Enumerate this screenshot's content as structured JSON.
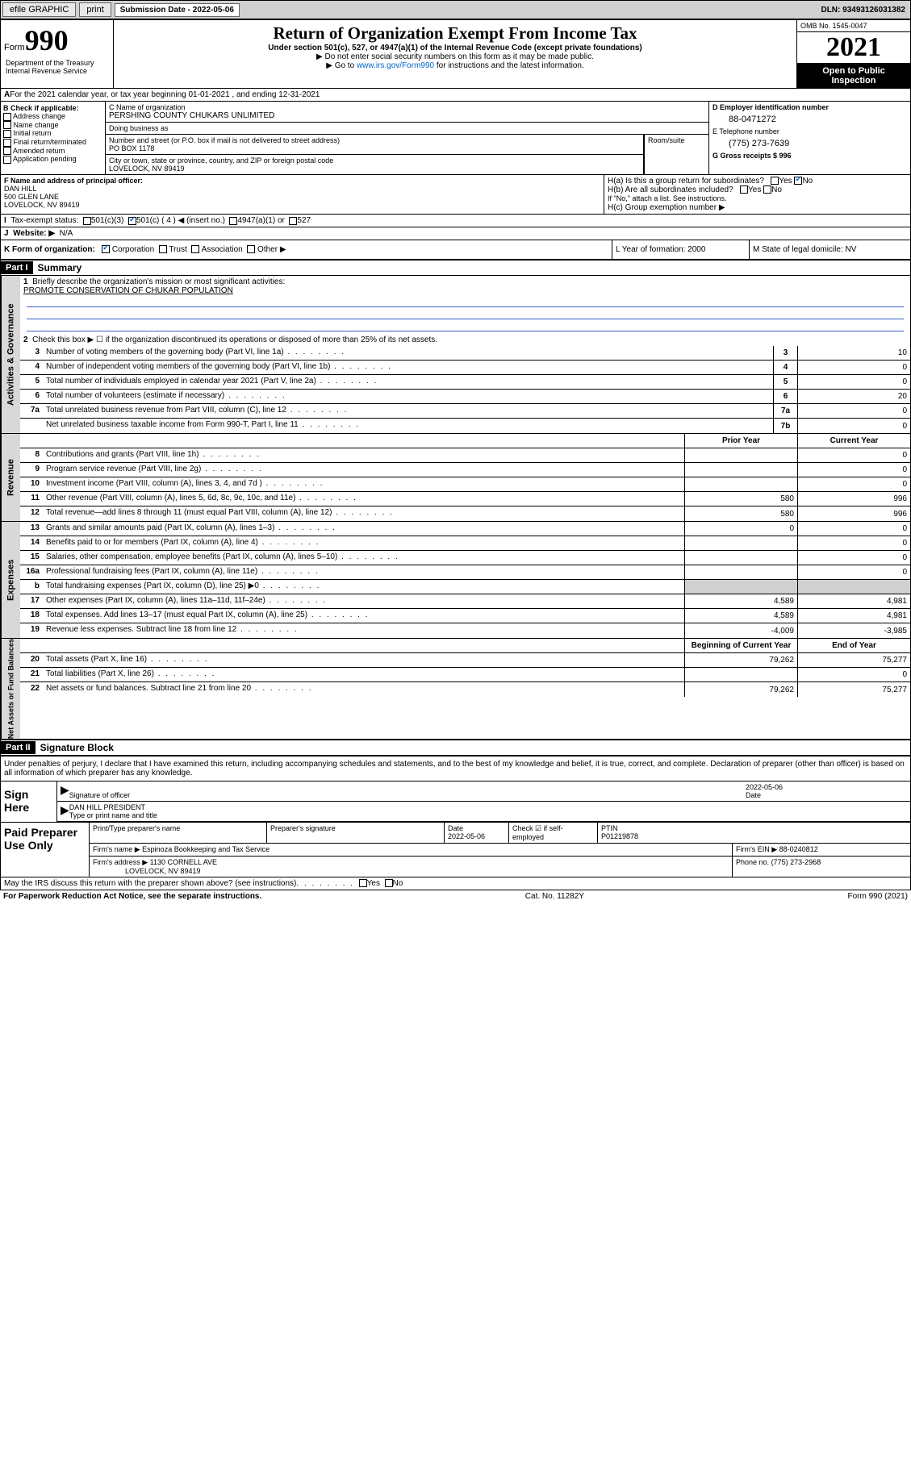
{
  "topbar": {
    "efile": "efile GRAPHIC",
    "print": "print",
    "subdate_label": "Submission Date - 2022-05-06",
    "dln": "DLN: 93493126031382"
  },
  "header": {
    "form_label": "Form",
    "form_num": "990",
    "dept": "Department of the Treasury\nInternal Revenue Service",
    "title": "Return of Organization Exempt From Income Tax",
    "subtitle": "Under section 501(c), 527, or 4947(a)(1) of the Internal Revenue Code (except private foundations)",
    "instr1": "▶ Do not enter social security numbers on this form as it may be made public.",
    "instr2_pre": "▶ Go to ",
    "instr2_link": "www.irs.gov/Form990",
    "instr2_post": " for instructions and the latest information.",
    "omb": "OMB No. 1545-0047",
    "year": "2021",
    "inspection": "Open to Public Inspection"
  },
  "section_a": "For the 2021 calendar year, or tax year beginning 01-01-2021    , and ending 12-31-2021",
  "section_b": {
    "label": "B Check if applicable:",
    "opts": [
      "Address change",
      "Name change",
      "Initial return",
      "Final return/terminated",
      "Amended return",
      "Application pending"
    ]
  },
  "section_c": {
    "name_label": "C Name of organization",
    "name": "PERSHING COUNTY CHUKARS UNLIMITED",
    "dba": "Doing business as",
    "addr_label": "Number and street (or P.O. box if mail is not delivered to street address)",
    "addr": "PO BOX 1178",
    "room": "Room/suite",
    "city_label": "City or town, state or province, country, and ZIP or foreign postal code",
    "city": "LOVELOCK, NV  89419"
  },
  "section_d": {
    "label": "D Employer identification number",
    "ein": "88-0471272",
    "e_label": "E Telephone number",
    "phone": "(775) 273-7639",
    "g_label": "G Gross receipts $ 996"
  },
  "officer": {
    "f_label": "F  Name and address of principal officer:",
    "name": "DAN HILL",
    "addr1": "500 GLEN LANE",
    "addr2": "LOVELOCK, NV  89419",
    "ha": "H(a)  Is this a group return for subordinates?",
    "hb": "H(b)  Are all subordinates included?",
    "hb_note": "If \"No,\" attach a list. See instructions.",
    "hc": "H(c)  Group exemption number ▶",
    "yes": "Yes",
    "no": "No"
  },
  "status": {
    "i": "Tax-exempt status:",
    "c3": "501(c)(3)",
    "c4": "501(c) ( 4 ) ◀ (insert no.)",
    "a1": "4947(a)(1) or",
    "s527": "527",
    "j": "Website: ▶",
    "jval": "N/A"
  },
  "kform": {
    "k": "K Form of organization:",
    "corp": "Corporation",
    "trust": "Trust",
    "assoc": "Association",
    "other": "Other ▶",
    "l": "L Year of formation: 2000",
    "m": "M State of legal domicile: NV"
  },
  "part1": {
    "label": "Part I",
    "title": "Summary",
    "line1": "Briefly describe the organization's mission or most significant activities:",
    "mission": "PROMOTE CONSERVATION OF CHUKAR POPULATION",
    "line2": "Check this box ▶ ☐  if the organization discontinued its operations or disposed of more than 25% of its net assets.",
    "sides": {
      "gov": "Activities & Governance",
      "rev": "Revenue",
      "exp": "Expenses",
      "net": "Net Assets or Fund Balances"
    },
    "cols": {
      "prior": "Prior Year",
      "current": "Current Year",
      "begin": "Beginning of Current Year",
      "end": "End of Year"
    },
    "rows": [
      {
        "n": "3",
        "t": "Number of voting members of the governing body (Part VI, line 1a)",
        "c": "3",
        "v": "10"
      },
      {
        "n": "4",
        "t": "Number of independent voting members of the governing body (Part VI, line 1b)",
        "c": "4",
        "v": "0"
      },
      {
        "n": "5",
        "t": "Total number of individuals employed in calendar year 2021 (Part V, line 2a)",
        "c": "5",
        "v": "0"
      },
      {
        "n": "6",
        "t": "Total number of volunteers (estimate if necessary)",
        "c": "6",
        "v": "20"
      },
      {
        "n": "7a",
        "t": "Total unrelated business revenue from Part VIII, column (C), line 12",
        "c": "7a",
        "v": "0"
      },
      {
        "n": "",
        "t": "Net unrelated business taxable income from Form 990-T, Part I, line 11",
        "c": "7b",
        "v": "0"
      }
    ],
    "revrows": [
      {
        "n": "8",
        "t": "Contributions and grants (Part VIII, line 1h)",
        "p": "",
        "c": "0"
      },
      {
        "n": "9",
        "t": "Program service revenue (Part VIII, line 2g)",
        "p": "",
        "c": "0"
      },
      {
        "n": "10",
        "t": "Investment income (Part VIII, column (A), lines 3, 4, and 7d )",
        "p": "",
        "c": "0"
      },
      {
        "n": "11",
        "t": "Other revenue (Part VIII, column (A), lines 5, 6d, 8c, 9c, 10c, and 11e)",
        "p": "580",
        "c": "996"
      },
      {
        "n": "12",
        "t": "Total revenue—add lines 8 through 11 (must equal Part VIII, column (A), line 12)",
        "p": "580",
        "c": "996"
      }
    ],
    "exprows": [
      {
        "n": "13",
        "t": "Grants and similar amounts paid (Part IX, column (A), lines 1–3)",
        "p": "0",
        "c": "0"
      },
      {
        "n": "14",
        "t": "Benefits paid to or for members (Part IX, column (A), line 4)",
        "p": "",
        "c": "0"
      },
      {
        "n": "15",
        "t": "Salaries, other compensation, employee benefits (Part IX, column (A), lines 5–10)",
        "p": "",
        "c": "0"
      },
      {
        "n": "16a",
        "t": "Professional fundraising fees (Part IX, column (A), line 11e)",
        "p": "",
        "c": "0"
      },
      {
        "n": "b",
        "t": "Total fundraising expenses (Part IX, column (D), line 25) ▶0",
        "p": "shaded",
        "c": "shaded"
      },
      {
        "n": "17",
        "t": "Other expenses (Part IX, column (A), lines 11a–11d, 11f–24e)",
        "p": "4,589",
        "c": "4,981"
      },
      {
        "n": "18",
        "t": "Total expenses. Add lines 13–17 (must equal Part IX, column (A), line 25)",
        "p": "4,589",
        "c": "4,981"
      },
      {
        "n": "19",
        "t": "Revenue less expenses. Subtract line 18 from line 12",
        "p": "-4,009",
        "c": "-3,985"
      }
    ],
    "netrows": [
      {
        "n": "20",
        "t": "Total assets (Part X, line 16)",
        "p": "79,262",
        "c": "75,277"
      },
      {
        "n": "21",
        "t": "Total liabilities (Part X, line 26)",
        "p": "",
        "c": "0"
      },
      {
        "n": "22",
        "t": "Net assets or fund balances. Subtract line 21 from line 20",
        "p": "79,262",
        "c": "75,277"
      }
    ]
  },
  "part2": {
    "label": "Part II",
    "title": "Signature Block",
    "decl": "Under penalties of perjury, I declare that I have examined this return, including accompanying schedules and statements, and to the best of my knowledge and belief, it is true, correct, and complete. Declaration of preparer (other than officer) is based on all information of which preparer has any knowledge.",
    "sign_here": "Sign Here",
    "sig_officer": "Signature of officer",
    "sig_date": "2022-05-06",
    "date": "Date",
    "officer_name": "DAN HILL PRESIDENT",
    "type_name": "Type or print name and title",
    "paid": "Paid Preparer Use Only",
    "prep_name": "Print/Type preparer's name",
    "prep_sig": "Preparer's signature",
    "prep_date_label": "Date",
    "prep_date": "2022-05-06",
    "check_se": "Check ☑ if self-employed",
    "ptin_label": "PTIN",
    "ptin": "P01219878",
    "firm_name_label": "Firm's name    ▶",
    "firm_name": "Espinoza Bookkeeping and Tax Service",
    "firm_ein_label": "Firm's EIN ▶",
    "firm_ein": "88-0240812",
    "firm_addr_label": "Firm's address ▶",
    "firm_addr1": "1130 CORNELL AVE",
    "firm_addr2": "LOVELOCK, NV  89419",
    "phone_label": "Phone no.",
    "phone": "(775) 273-2968",
    "discuss": "May the IRS discuss this return with the preparer shown above? (see instructions)"
  },
  "footer": {
    "left": "For Paperwork Reduction Act Notice, see the separate instructions.",
    "mid": "Cat. No. 11282Y",
    "right": "Form 990 (2021)"
  }
}
